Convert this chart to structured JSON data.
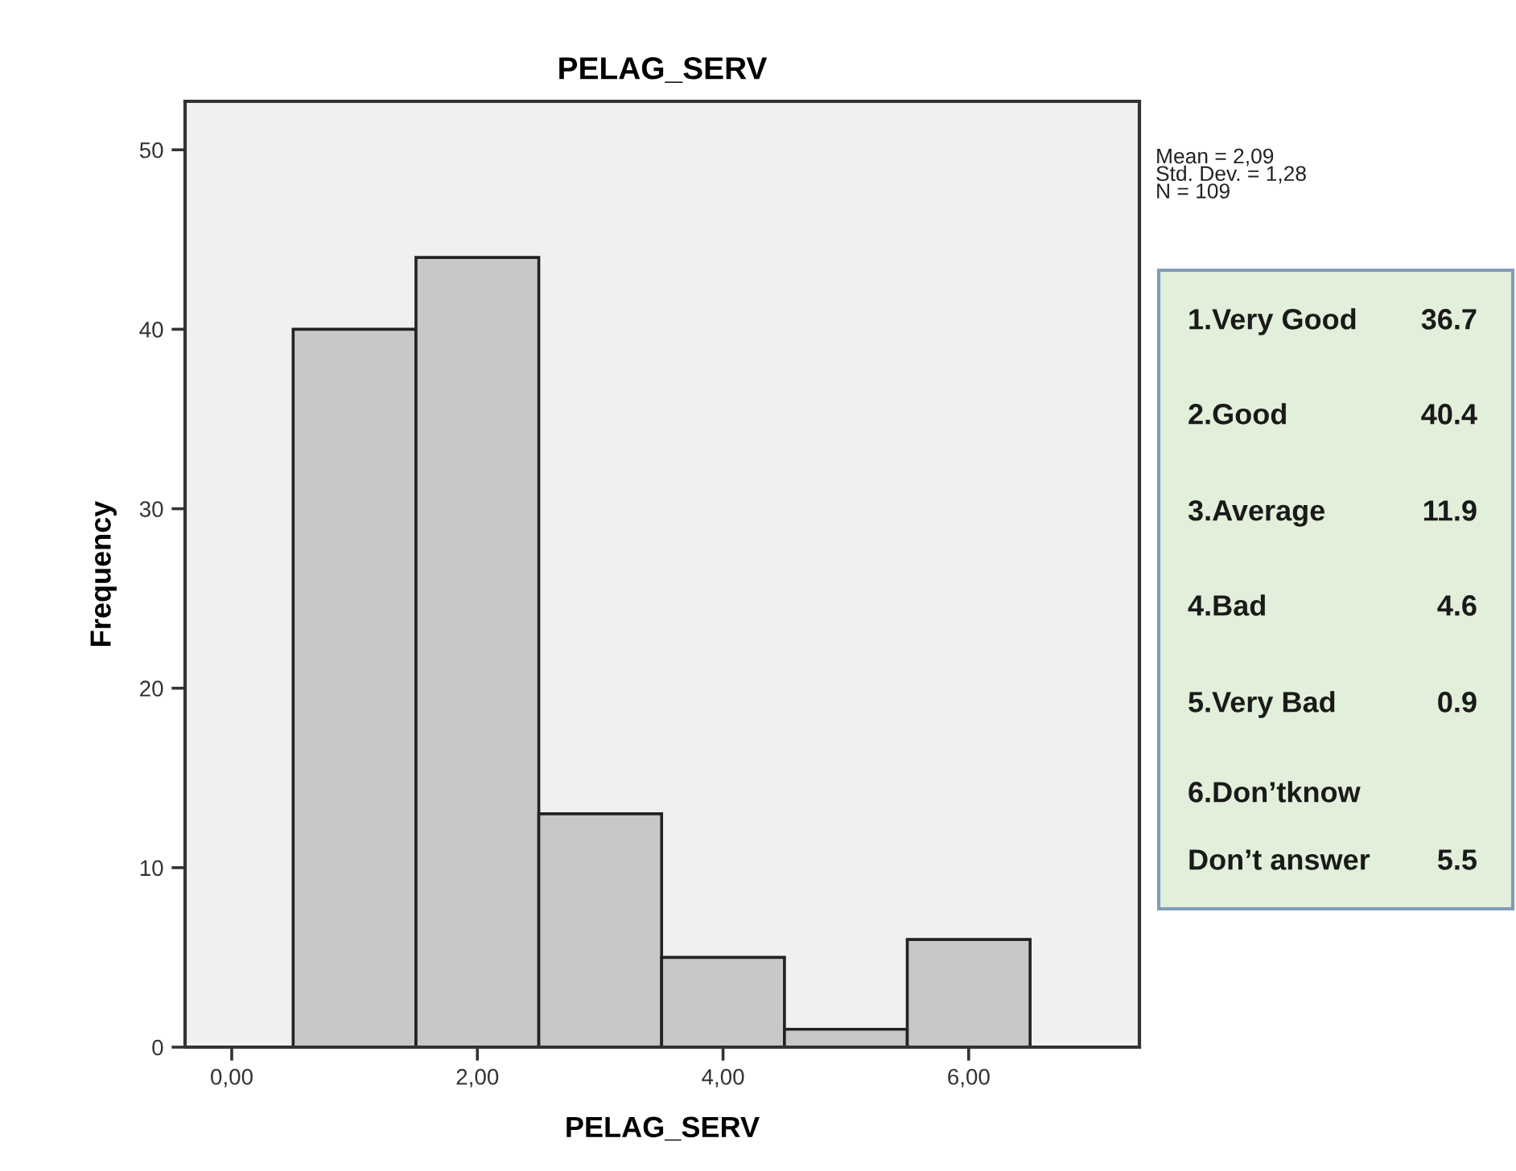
{
  "chart_data": {
    "type": "histogram",
    "title": "PELAG_SERV",
    "xlabel": "PELAG_SERV",
    "ylabel": "Frequency",
    "bins": [
      0.5,
      1.5,
      2.5,
      3.5,
      4.5,
      5.5,
      6.5
    ],
    "values": [
      40,
      44,
      13,
      5,
      1,
      6
    ],
    "color": "#c8c8c8",
    "xlim": [
      -0.38,
      7.39
    ],
    "ylim": [
      0,
      52.7
    ],
    "xticks": [
      {
        "value": 0,
        "label": "0,00"
      },
      {
        "value": 2,
        "label": "2,00"
      },
      {
        "value": 4,
        "label": "4,00"
      },
      {
        "value": 6,
        "label": "6,00"
      }
    ],
    "yticks": [
      0,
      10,
      20,
      30,
      40,
      50
    ],
    "annotations": [
      "Mean = 2,09\nStd. Dev. = 1,28\nN = 109",
      "1.Very Good 36.7",
      "2.Good 40.4",
      "3.Average 11.9",
      "4.Bad 4.6",
      "5.Very Bad 0.9",
      "6.Don’tknow",
      "Don’t answer 5.5"
    ]
  }
}
